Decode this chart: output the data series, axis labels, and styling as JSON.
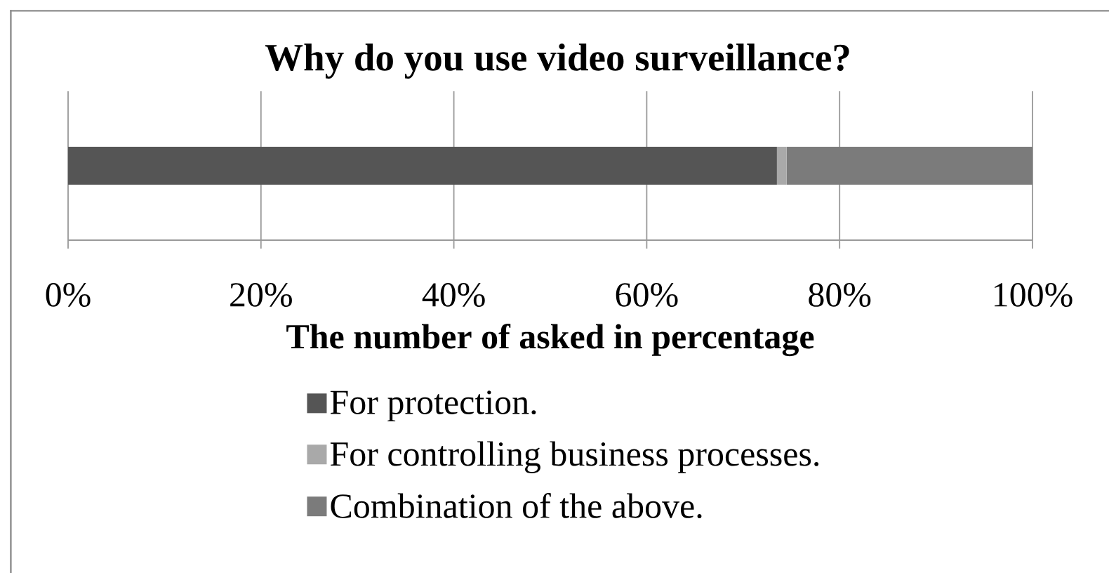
{
  "chart_data": {
    "type": "bar",
    "orientation": "horizontal",
    "stacked": true,
    "title": "Why do you use video surveillance?",
    "xlabel": "The number of asked in percentage",
    "categories": [
      null
    ],
    "series": [
      {
        "name": "For protection.",
        "color": "#555555",
        "values": [
          73.5
        ]
      },
      {
        "name": "For controlling business processes.",
        "color": "#a9a9a9",
        "values": [
          1
        ]
      },
      {
        "name": "Combination of the above.",
        "color": "#7b7b7b",
        "values": [
          25.5
        ]
      }
    ],
    "xlim": [
      0,
      100
    ],
    "xticks": [
      {
        "value": 0,
        "label": "0%"
      },
      {
        "value": 20,
        "label": "20%"
      },
      {
        "value": 40,
        "label": "40%"
      },
      {
        "value": 60,
        "label": "60%"
      },
      {
        "value": 80,
        "label": "80%"
      },
      {
        "value": 100,
        "label": "100%"
      }
    ],
    "grid": "x",
    "legend": "bottom",
    "tick_labels": "x"
  }
}
